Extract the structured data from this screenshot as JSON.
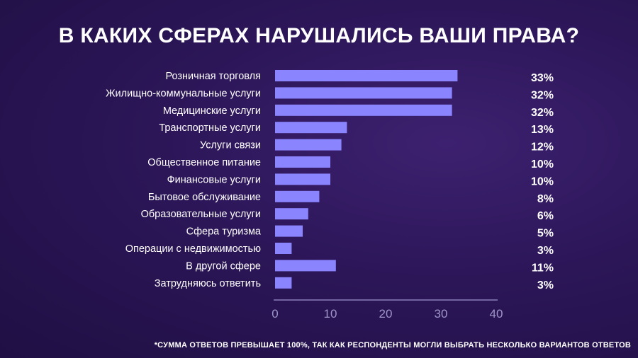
{
  "chart_data": {
    "type": "bar",
    "orientation": "horizontal",
    "title": "В КАКИХ СФЕРАХ НАРУШАЛИСЬ ВАШИ ПРАВА?",
    "categories": [
      "Розничная торговля",
      "Жилищно-коммунальные услуги",
      "Медицинские услуги",
      "Транспортные услуги",
      "Услуги связи",
      "Общественное питание",
      "Финансовые услуги",
      "Бытовое обслуживание",
      "Образовательные услуги",
      "Сфера туризма",
      "Операции с недвижимостью",
      "В другой сфере",
      "Затрудняюсь ответить"
    ],
    "values": [
      33,
      32,
      32,
      13,
      12,
      10,
      10,
      8,
      6,
      5,
      3,
      11,
      3
    ],
    "value_labels": [
      "33%",
      "32%",
      "32%",
      "13%",
      "12%",
      "10%",
      "10%",
      "8%",
      "6%",
      "5%",
      "3%",
      "11%",
      "3%"
    ],
    "xlim": [
      0,
      40
    ],
    "xticks": [
      "0",
      "10",
      "20",
      "30",
      "40"
    ],
    "xlabel": "",
    "ylabel": "",
    "grid": false,
    "bar_color": "#8b84ff",
    "footnote": "*СУММА ОТВЕТОВ ПРЕВЫШАЕТ 100%, ТАК КАК РЕСПОНДЕНТЫ МОГЛИ ВЫБРАТЬ НЕСКОЛЬКО ВАРИАНТОВ ОТВЕТОВ"
  }
}
